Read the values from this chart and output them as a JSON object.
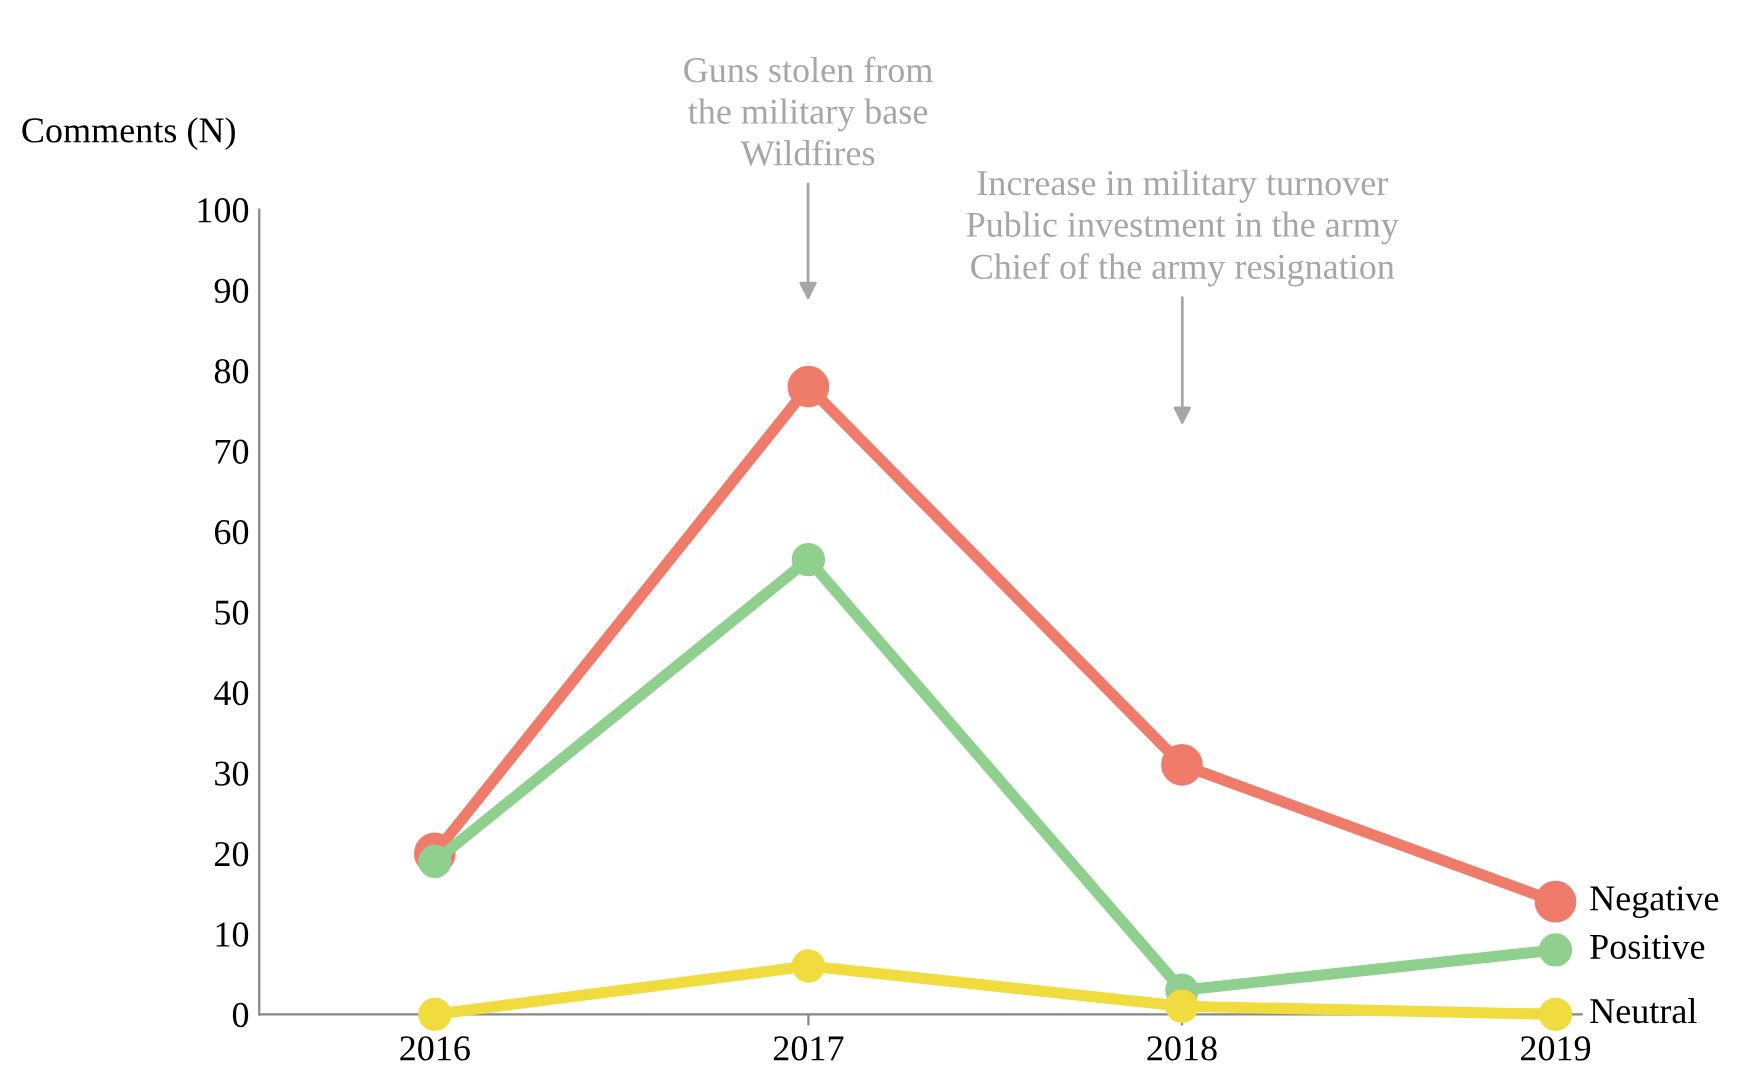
{
  "chart_data": {
    "type": "line",
    "ylabel": "Comments (N)",
    "categories": [
      "2016",
      "2017",
      "2018",
      "2019"
    ],
    "series": [
      {
        "name": "Negative",
        "color": "#ef7b6b",
        "values": [
          20,
          78,
          31,
          14
        ]
      },
      {
        "name": "Positive",
        "color": "#8fd08f",
        "values": [
          19,
          56.5,
          3,
          8
        ]
      },
      {
        "name": "Neutral",
        "color": "#f0dc3e",
        "values": [
          0,
          6,
          1,
          0
        ]
      }
    ],
    "ylim": [
      0,
      100
    ],
    "yticks": [
      0,
      10,
      20,
      30,
      40,
      50,
      60,
      70,
      80,
      90,
      100
    ],
    "grid": false,
    "legend": false,
    "marker": "circle",
    "line_style": "solid",
    "annotations": [
      "Guns stolen from\nthe military base\nWildfires",
      "Increase in military turnover\nPublic investment in the army\nChief of the army resignation"
    ]
  }
}
